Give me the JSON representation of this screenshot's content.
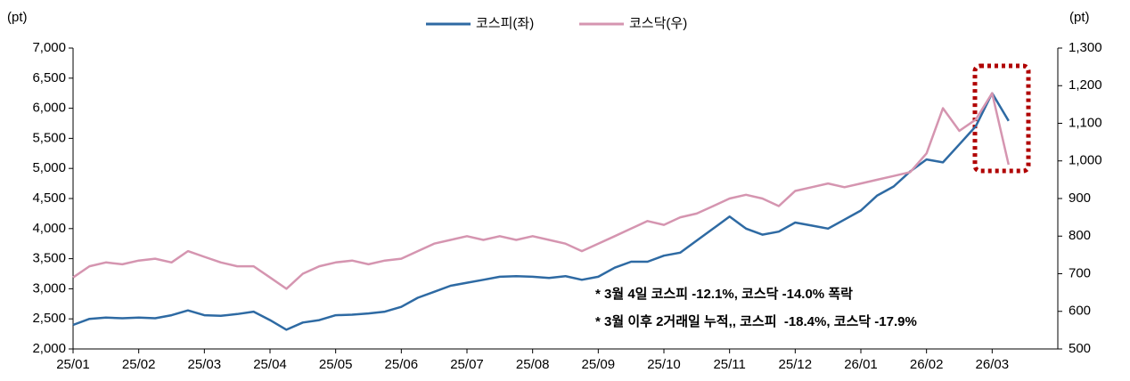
{
  "chart_data": {
    "type": "line",
    "y_label": "(pt)",
    "y2_label": "(pt)",
    "annotations": [
      "* 3월 4일 코스피 -12.1%, 코스닥 -14.0% 폭락",
      "* 3월 이후 2거래일 누적,, 코스피  -18.4%, 코스닥 -17.9%"
    ],
    "categories": [
      "25/01",
      null,
      null,
      null,
      "25/02",
      null,
      null,
      null,
      "25/03",
      null,
      null,
      null,
      "25/04",
      null,
      null,
      null,
      "25/05",
      null,
      null,
      null,
      "25/06",
      null,
      null,
      null,
      "25/07",
      null,
      null,
      null,
      "25/08",
      null,
      null,
      null,
      "25/09",
      null,
      null,
      null,
      "25/10",
      null,
      null,
      null,
      "25/11",
      null,
      null,
      null,
      "25/12",
      null,
      null,
      null,
      "26/01",
      null,
      null,
      null,
      "26/02",
      null,
      null,
      null,
      "26/03",
      null,
      null,
      null,
      null
    ],
    "series": [
      {
        "name": "코스피(좌)",
        "color": "#2e6aa3",
        "axis": "y",
        "values": [
          2400,
          2500,
          2520,
          2510,
          2520,
          2510,
          2560,
          2640,
          2560,
          2550,
          2580,
          2620,
          2480,
          2320,
          2440,
          2480,
          2560,
          2570,
          2590,
          2620,
          2700,
          2850,
          2950,
          3050,
          3100,
          3150,
          3200,
          3210,
          3200,
          3180,
          3210,
          3150,
          3200,
          3350,
          3450,
          3450,
          3550,
          3600,
          3800,
          4000,
          4200,
          4000,
          3900,
          3950,
          4100,
          4050,
          4000,
          4150,
          4300,
          4550,
          4700,
          4950,
          5150,
          5100,
          5400,
          5700,
          6250,
          5790,
          null,
          null,
          null
        ]
      },
      {
        "name": "코스닥(우)",
        "color": "#d595b0",
        "axis": "y2",
        "values": [
          690,
          720,
          730,
          725,
          735,
          740,
          730,
          760,
          745,
          730,
          720,
          720,
          690,
          660,
          700,
          720,
          730,
          735,
          725,
          735,
          740,
          760,
          780,
          790,
          800,
          790,
          800,
          790,
          800,
          790,
          780,
          760,
          780,
          800,
          820,
          840,
          830,
          850,
          860,
          880,
          900,
          910,
          900,
          880,
          920,
          930,
          940,
          930,
          940,
          950,
          960,
          970,
          1020,
          1140,
          1080,
          1110,
          1180,
          990,
          null,
          null,
          null
        ]
      }
    ],
    "ylim": [
      2000,
      7000
    ],
    "yticks": [
      {
        "value": 2000,
        "label": "2,000"
      },
      {
        "value": 2500,
        "label": "2,500"
      },
      {
        "value": 3000,
        "label": "3,000"
      },
      {
        "value": 3500,
        "label": "3,500"
      },
      {
        "value": 4000,
        "label": "4,000"
      },
      {
        "value": 4500,
        "label": "4,500"
      },
      {
        "value": 5000,
        "label": "5,000"
      },
      {
        "value": 5500,
        "label": "5,500"
      },
      {
        "value": 6000,
        "label": "6,000"
      },
      {
        "value": 6500,
        "label": "6,500"
      },
      {
        "value": 7000,
        "label": "7,000"
      }
    ],
    "y2lim": [
      500,
      1300
    ],
    "y2ticks": [
      500,
      600,
      700,
      800,
      900,
      {
        "value": 1000,
        "label": "1,000"
      },
      {
        "value": 1100,
        "label": "1,100"
      },
      {
        "value": 1200,
        "label": "1,200"
      },
      {
        "value": 1300,
        "label": "1,300"
      }
    ],
    "grid": false,
    "legend": "top"
  }
}
